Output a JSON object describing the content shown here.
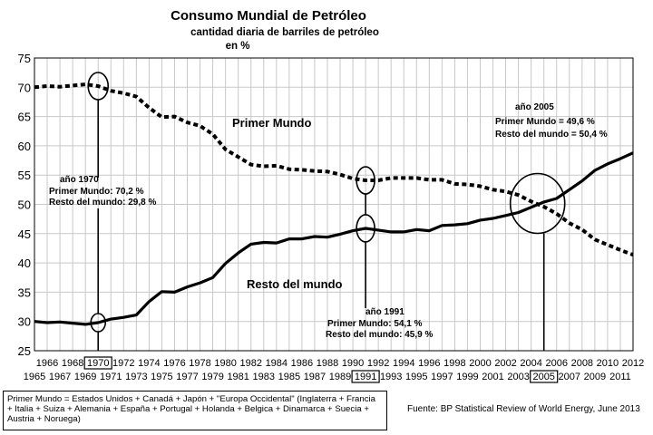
{
  "chart_data": {
    "type": "line",
    "title": "Consumo Mundial de Petróleo",
    "subtitle": [
      "cantidad diaria de barriles de petróleo",
      "en %"
    ],
    "x": [
      1965,
      1966,
      1967,
      1968,
      1969,
      1970,
      1971,
      1972,
      1973,
      1974,
      1975,
      1976,
      1977,
      1978,
      1979,
      1980,
      1981,
      1982,
      1983,
      1984,
      1985,
      1986,
      1987,
      1988,
      1989,
      1990,
      1991,
      1992,
      1993,
      1994,
      1995,
      1996,
      1997,
      1998,
      1999,
      2000,
      2001,
      2002,
      2003,
      2004,
      2005,
      2006,
      2007,
      2008,
      2009,
      2010,
      2011,
      2012
    ],
    "xlim": [
      1965,
      2012
    ],
    "ylim": [
      25,
      75
    ],
    "yticks": [
      25,
      30,
      35,
      40,
      45,
      50,
      55,
      60,
      65,
      70,
      75
    ],
    "xticks_top": [
      "1966",
      "1968",
      "1970",
      "1972",
      "1974",
      "1976",
      "1978",
      "1980",
      "1982",
      "1984",
      "1986",
      "1988",
      "1990",
      "1992",
      "1994",
      "1996",
      "1998",
      "2000",
      "2002",
      "2004",
      "2006",
      "2008",
      "2010",
      "2012"
    ],
    "xticks_bottom": [
      "1965",
      "1967",
      "1969",
      "1971",
      "1973",
      "1975",
      "1977",
      "1979",
      "1981",
      "1983",
      "1985",
      "1987",
      "1989",
      "1991",
      "1993",
      "1995",
      "1997",
      "1999",
      "2001",
      "2003",
      "2005",
      "2007",
      "2009",
      "2011"
    ],
    "boxed_ticks": [
      "1970",
      "1991",
      "2005"
    ],
    "grid": true,
    "series": [
      {
        "name": "Primer Mundo",
        "style": "dashed",
        "values": [
          70.0,
          70.2,
          70.1,
          70.3,
          70.5,
          70.2,
          69.4,
          69.0,
          68.4,
          66.5,
          64.9,
          65.0,
          64.0,
          63.4,
          62.0,
          59.4,
          58.1,
          56.8,
          56.5,
          56.6,
          56.0,
          55.9,
          55.7,
          55.6,
          55.1,
          54.4,
          54.1,
          54.1,
          54.5,
          54.5,
          54.5,
          54.2,
          54.2,
          53.5,
          53.4,
          53.1,
          52.5,
          52.2,
          51.6,
          50.5,
          49.6,
          48.4,
          46.8,
          45.7,
          44.0,
          43.1,
          42.2,
          41.4
        ]
      },
      {
        "name": "Resto del mundo",
        "style": "solid",
        "values": [
          30.0,
          29.8,
          29.9,
          29.7,
          29.5,
          29.8,
          30.4,
          30.7,
          31.1,
          33.4,
          35.1,
          35.0,
          35.9,
          36.6,
          37.5,
          39.9,
          41.7,
          43.2,
          43.5,
          43.4,
          44.1,
          44.1,
          44.5,
          44.4,
          44.9,
          45.5,
          45.9,
          45.6,
          45.3,
          45.3,
          45.7,
          45.5,
          46.4,
          46.5,
          46.7,
          47.3,
          47.6,
          48.1,
          48.6,
          49.5,
          50.4,
          51.0,
          52.5,
          54.0,
          55.8,
          56.9,
          57.8,
          58.8
        ]
      }
    ],
    "annotations": [
      {
        "title": "año 1970",
        "lines": [
          "Primer Mundo: 70,2 %",
          "Resto del mundo: 29,8 %"
        ]
      },
      {
        "title": "año 1991",
        "lines": [
          "Primer Mundo: 54,1 %",
          "Resto del mundo: 45,9 %"
        ]
      },
      {
        "title": "año 2005",
        "lines": [
          "Primer Mundo = 49,6 %",
          "Resto del mundo = 50,4 %"
        ]
      }
    ]
  },
  "legend_box": "Primer Mundo = Estados Unidos + Canadá + Japón + \"Europa Occidental\" (Inglaterra + Francia + Italia + Suiza + Alemania + España + Portugal + Holanda + Belgica + Dinamarca + Suecia + Austria + Noruega)",
  "source": "Fuente: BP Statistical Review of World Energy, June 2013"
}
